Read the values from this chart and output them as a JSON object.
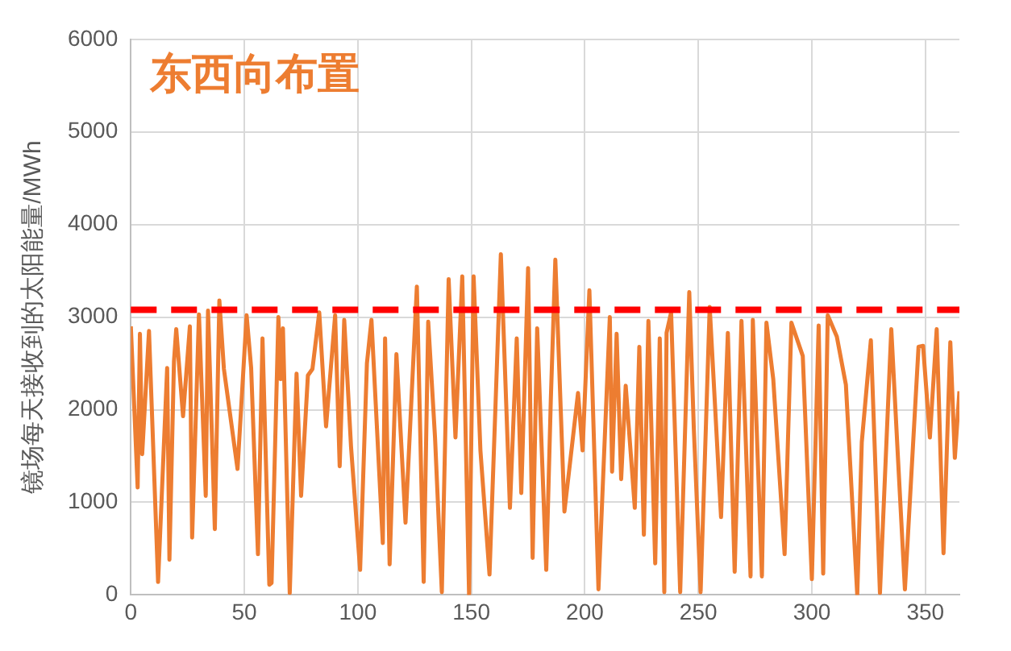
{
  "chart_data": {
    "type": "line",
    "title": "东西向布置",
    "ylabel": "镜场每天接收到的太阳能量/MWh",
    "xlim": [
      0,
      365
    ],
    "xticks": [
      0,
      50,
      100,
      150,
      200,
      250,
      300,
      350
    ],
    "ylim": [
      0,
      6000
    ],
    "yticks": [
      0,
      1000,
      2000,
      3000,
      4000,
      5000,
      6000
    ],
    "grid": true,
    "legend": false,
    "marker": "none",
    "line_style": "solid",
    "ref_lines": [
      {
        "axis": "y",
        "value": 3080,
        "color": "#ff0000",
        "line_style": "dashed"
      }
    ],
    "series": [
      {
        "color": "#ed7d31",
        "x": [
          0,
          3,
          4,
          5,
          8,
          12,
          16,
          17,
          19,
          20,
          23,
          26,
          27,
          30,
          33,
          34,
          37,
          39,
          41,
          47,
          51,
          53,
          56,
          58,
          61,
          62,
          65,
          66,
          67,
          70,
          73,
          75,
          78,
          80,
          83,
          86,
          90,
          92,
          94,
          97,
          101,
          104,
          106,
          111,
          112,
          114,
          117,
          121,
          126,
          129,
          131,
          134,
          137,
          140,
          143,
          146,
          149,
          151,
          154,
          158,
          163,
          167,
          170,
          172,
          175,
          177,
          179,
          183,
          185,
          187,
          191,
          197,
          199,
          202,
          206,
          211,
          212,
          214,
          216,
          218,
          222,
          224,
          226,
          228,
          231,
          233,
          235,
          236,
          238,
          242,
          246,
          248,
          251,
          255,
          260,
          263,
          266,
          269,
          273,
          274,
          278,
          280,
          283,
          288,
          291,
          296,
          300,
          303,
          305,
          307,
          311,
          315,
          320,
          322,
          326,
          330,
          335,
          338,
          341,
          347,
          349,
          352,
          355,
          358,
          361,
          363,
          365
        ],
        "values": [
          2900,
          1160,
          2820,
          1520,
          2850,
          140,
          2450,
          380,
          2520,
          2870,
          1930,
          2900,
          620,
          3030,
          1070,
          3070,
          710,
          3180,
          2440,
          1360,
          3020,
          2450,
          440,
          2770,
          110,
          130,
          3000,
          2330,
          2880,
          20,
          2390,
          1070,
          2370,
          2440,
          3050,
          1820,
          3020,
          1390,
          2970,
          1600,
          270,
          2500,
          2970,
          560,
          2770,
          330,
          2600,
          780,
          3330,
          140,
          2950,
          1700,
          30,
          3410,
          1700,
          3440,
          0,
          3440,
          1560,
          220,
          3680,
          940,
          2770,
          1100,
          3530,
          400,
          2880,
          270,
          2100,
          3620,
          900,
          2180,
          1560,
          3290,
          60,
          3000,
          1330,
          2820,
          1250,
          2260,
          940,
          2680,
          650,
          2960,
          340,
          2770,
          30,
          2830,
          3050,
          30,
          3270,
          1800,
          30,
          3110,
          840,
          2830,
          250,
          2960,
          200,
          2970,
          200,
          2940,
          2330,
          440,
          2940,
          2580,
          170,
          2910,
          230,
          3020,
          2790,
          2270,
          0,
          1650,
          2750,
          20,
          2870,
          1450,
          60,
          2680,
          2690,
          1700,
          2870,
          450,
          2730,
          1480,
          2200
        ]
      }
    ]
  }
}
